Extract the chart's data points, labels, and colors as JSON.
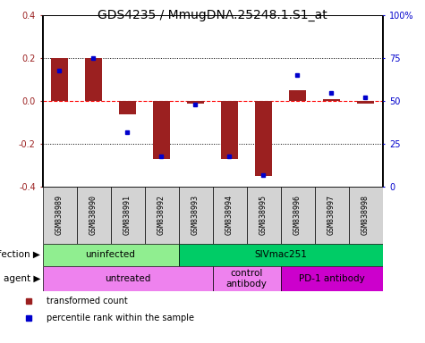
{
  "title": "GDS4235 / MmugDNA.25248.1.S1_at",
  "samples": [
    "GSM838989",
    "GSM838990",
    "GSM838991",
    "GSM838992",
    "GSM838993",
    "GSM838994",
    "GSM838995",
    "GSM838996",
    "GSM838997",
    "GSM838998"
  ],
  "bar_values": [
    0.2,
    0.2,
    -0.06,
    -0.27,
    -0.01,
    -0.27,
    -0.35,
    0.05,
    0.01,
    -0.01
  ],
  "dot_values": [
    0.68,
    0.75,
    0.32,
    0.18,
    0.48,
    0.18,
    0.07,
    0.65,
    0.55,
    0.52
  ],
  "ylim": [
    -0.4,
    0.4
  ],
  "y2lim": [
    0,
    1.0
  ],
  "yticks": [
    -0.4,
    -0.2,
    0.0,
    0.2,
    0.4
  ],
  "y2ticks": [
    0.0,
    0.25,
    0.5,
    0.75,
    1.0
  ],
  "y2ticklabels": [
    "0",
    "25",
    "50",
    "75",
    "100%"
  ],
  "bar_color": "#9B2020",
  "dot_color": "#0000CC",
  "infection_groups": [
    {
      "label": "uninfected",
      "start": 0,
      "end": 4,
      "color": "#90EE90"
    },
    {
      "label": "SIVmac251",
      "start": 4,
      "end": 10,
      "color": "#00CC66"
    }
  ],
  "agent_groups": [
    {
      "label": "untreated",
      "start": 0,
      "end": 5,
      "color": "#EE82EE"
    },
    {
      "label": "control\nantibody",
      "start": 5,
      "end": 7,
      "color": "#EE82EE"
    },
    {
      "label": "PD-1 antibody",
      "start": 7,
      "end": 10,
      "color": "#CC00CC"
    }
  ],
  "legend_bar_label": "transformed count",
  "legend_dot_label": "percentile rank within the sample",
  "title_fontsize": 10,
  "tick_fontsize": 7,
  "sample_label_fontsize": 6,
  "group_label_fontsize": 7.5,
  "legend_fontsize": 7
}
